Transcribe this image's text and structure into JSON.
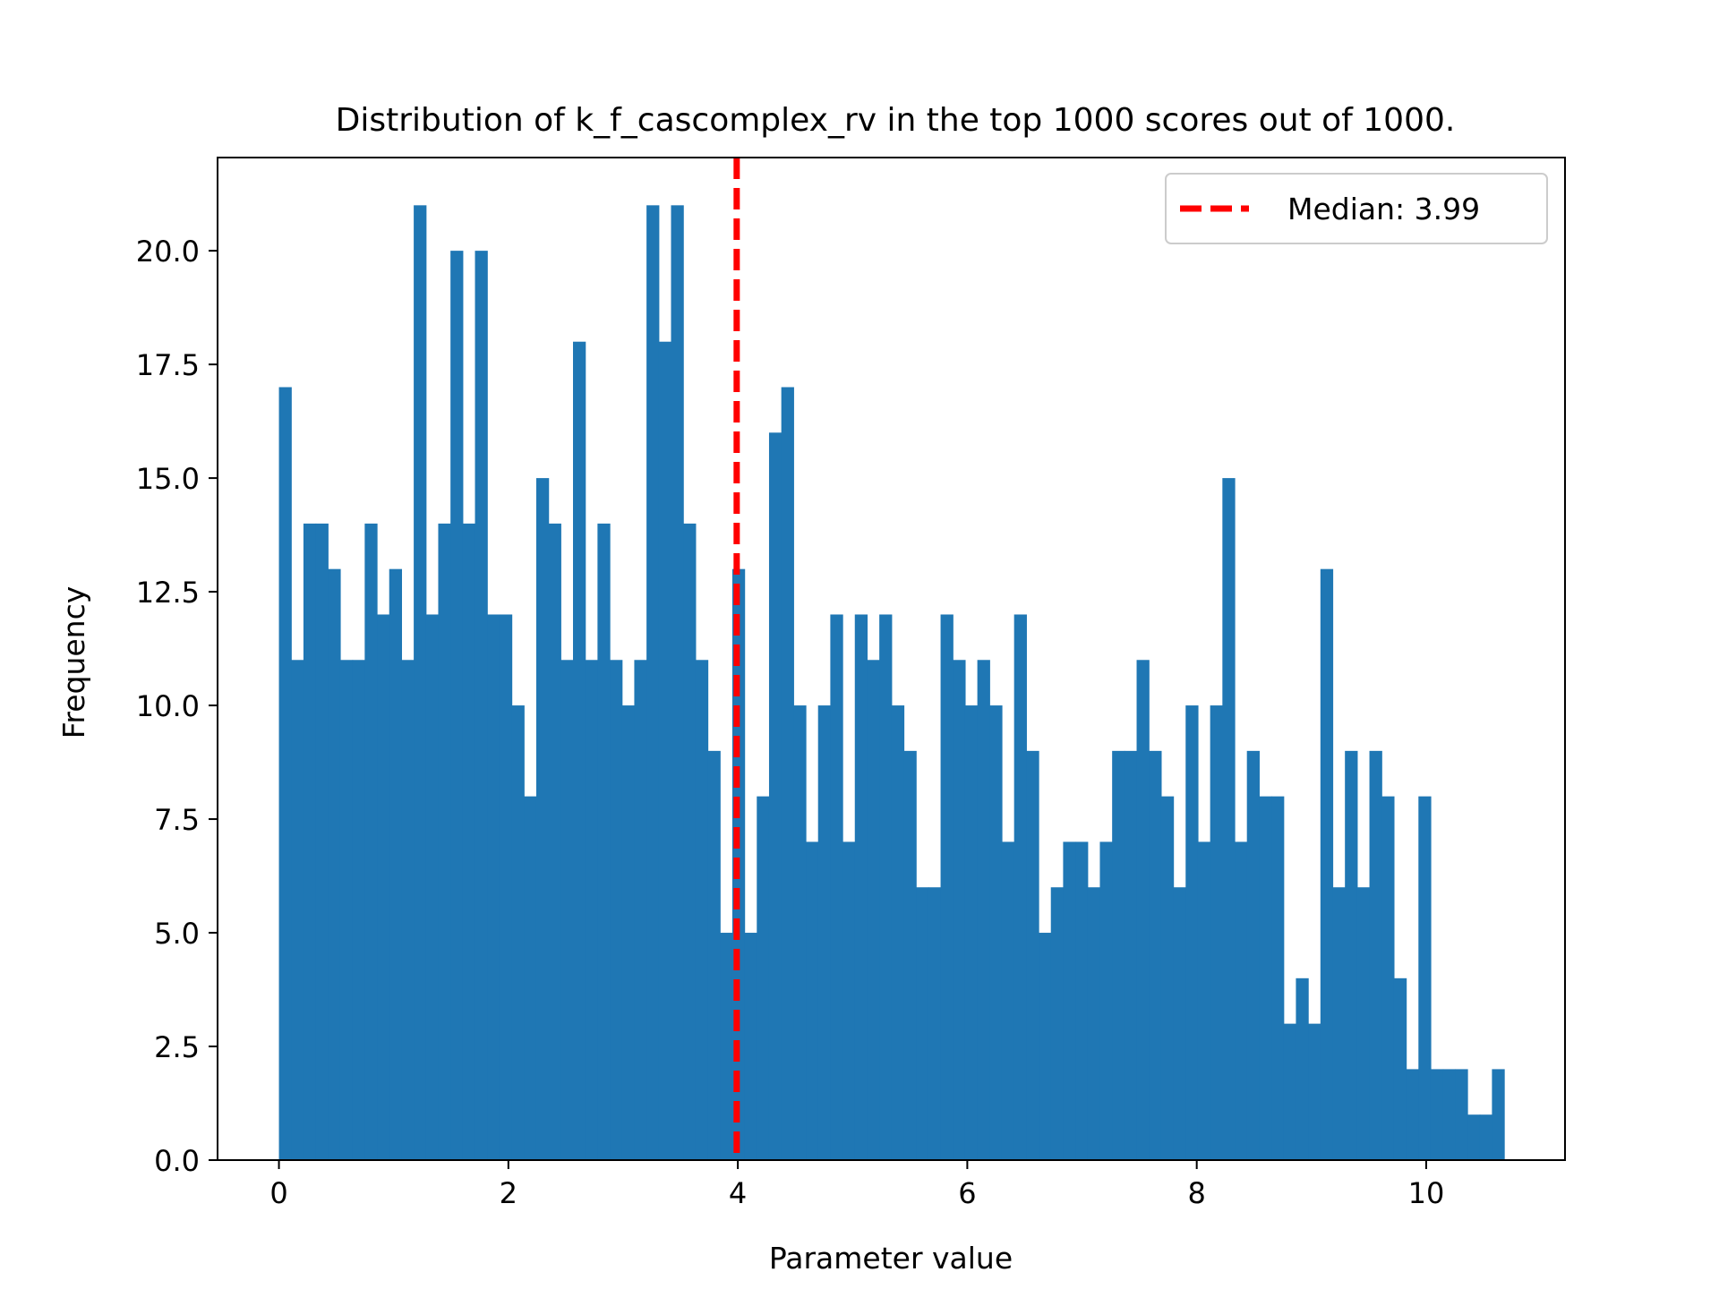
{
  "chart_data": {
    "type": "bar",
    "title": "Distribution of k_f_cascomplex_rv in the top 1000 scores out of 1000.",
    "xlabel": "Parameter value",
    "ylabel": "Frequency",
    "xlim": [
      -0.535,
      11.21
    ],
    "ylim": [
      0,
      22.05
    ],
    "xticks": [
      0,
      2,
      4,
      6,
      8,
      10
    ],
    "xtick_labels": [
      "0",
      "2",
      "4",
      "6",
      "8",
      "10"
    ],
    "yticks": [
      0,
      2.5,
      5,
      7.5,
      10,
      12.5,
      15,
      17.5,
      20
    ],
    "ytick_labels": [
      "0.0",
      "2.5",
      "5.0",
      "7.5",
      "10.0",
      "12.5",
      "15.0",
      "17.5",
      "20.0"
    ],
    "bins": {
      "start": 0.0,
      "end": 10.68,
      "count": 100
    },
    "values": [
      17,
      11,
      14,
      14,
      13,
      11,
      11,
      14,
      12,
      13,
      11,
      21,
      12,
      14,
      20,
      14,
      20,
      12,
      12,
      10,
      8,
      15,
      14,
      11,
      18,
      11,
      14,
      11,
      10,
      11,
      21,
      18,
      21,
      14,
      11,
      9,
      5,
      13,
      5,
      8,
      16,
      17,
      10,
      7,
      10,
      12,
      7,
      12,
      11,
      12,
      10,
      9,
      6,
      6,
      12,
      11,
      10,
      11,
      10,
      7,
      12,
      9,
      5,
      6,
      7,
      7,
      6,
      7,
      9,
      9,
      11,
      9,
      8,
      6,
      10,
      7,
      10,
      15,
      7,
      9,
      8,
      8,
      3,
      4,
      3,
      13,
      6,
      9,
      6,
      9,
      8,
      4,
      2,
      8,
      2,
      2,
      2,
      1,
      1,
      2
    ],
    "bar_color": "#1f77b4",
    "median": {
      "value": 3.99,
      "color": "#ff0000",
      "style": "dashed"
    },
    "legend": {
      "position": "top-right",
      "entries": [
        "Median: 3.99"
      ]
    },
    "grid": false
  }
}
